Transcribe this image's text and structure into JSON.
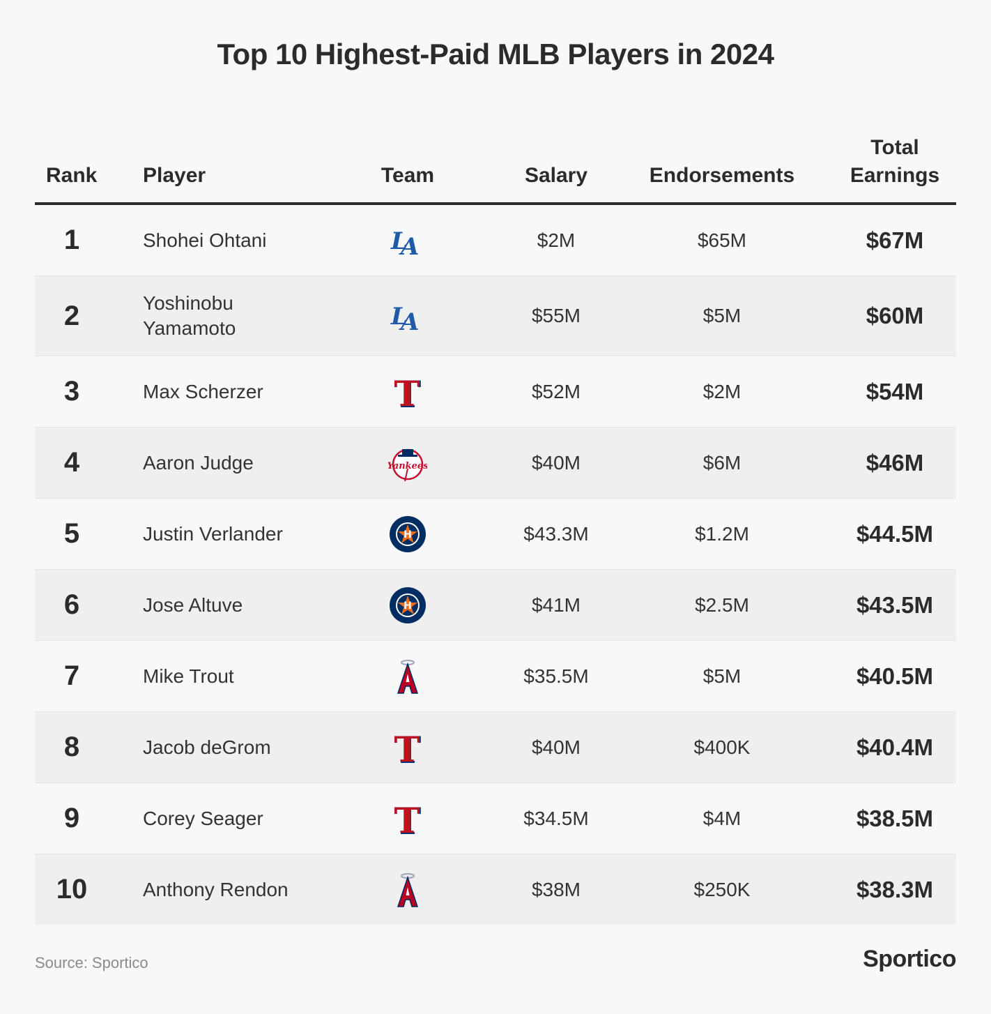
{
  "title": "Top 10 Highest-Paid MLB Players in 2024",
  "headers": {
    "rank": "Rank",
    "player": "Player",
    "team": "Team",
    "salary": "Salary",
    "endorsements": "Endorsements",
    "total_line1": "Total",
    "total_line2": "Earnings"
  },
  "rows": [
    {
      "rank": "1",
      "player_line1": "Shohei Ohtani",
      "player_line2": "",
      "team_icon": "dodgers-logo-icon",
      "salary": "$2M",
      "endorsements": "$65M",
      "total": "$67M"
    },
    {
      "rank": "2",
      "player_line1": "Yoshinobu",
      "player_line2": "Yamamoto",
      "team_icon": "dodgers-logo-icon",
      "salary": "$55M",
      "endorsements": "$5M",
      "total": "$60M"
    },
    {
      "rank": "3",
      "player_line1": "Max Scherzer",
      "player_line2": "",
      "team_icon": "rangers-logo-icon",
      "salary": "$52M",
      "endorsements": "$2M",
      "total": "$54M"
    },
    {
      "rank": "4",
      "player_line1": "Aaron Judge",
      "player_line2": "",
      "team_icon": "yankees-logo-icon",
      "salary": "$40M",
      "endorsements": "$6M",
      "total": "$46M"
    },
    {
      "rank": "5",
      "player_line1": "Justin Verlander",
      "player_line2": "",
      "team_icon": "astros-logo-icon",
      "salary": "$43.3M",
      "endorsements": "$1.2M",
      "total": "$44.5M"
    },
    {
      "rank": "6",
      "player_line1": "Jose Altuve",
      "player_line2": "",
      "team_icon": "astros-logo-icon",
      "salary": "$41M",
      "endorsements": "$2.5M",
      "total": "$43.5M"
    },
    {
      "rank": "7",
      "player_line1": "Mike Trout",
      "player_line2": "",
      "team_icon": "angels-logo-icon",
      "salary": "$35.5M",
      "endorsements": "$5M",
      "total": "$40.5M"
    },
    {
      "rank": "8",
      "player_line1": "Jacob deGrom",
      "player_line2": "",
      "team_icon": "rangers-logo-icon",
      "salary": "$40M",
      "endorsements": "$400K",
      "total": "$40.4M"
    },
    {
      "rank": "9",
      "player_line1": "Corey Seager",
      "player_line2": "",
      "team_icon": "rangers-logo-icon",
      "salary": "$34.5M",
      "endorsements": "$4M",
      "total": "$38.5M"
    },
    {
      "rank": "10",
      "player_line1": "Anthony Rendon",
      "player_line2": "",
      "team_icon": "angels-logo-icon",
      "salary": "$38M",
      "endorsements": "$250K",
      "total": "$38.3M"
    }
  ],
  "colors": {
    "dodgers_blue": "#1e5aa8",
    "rangers_red": "#c0111f",
    "rangers_blue": "#003278",
    "yankees_red": "#c4102f",
    "astros_navy": "#002d62",
    "astros_orange": "#eb6e1f",
    "angels_red": "#ba0021"
  },
  "footer": {
    "source": "Source: Sportico",
    "brand": "Sportico"
  }
}
